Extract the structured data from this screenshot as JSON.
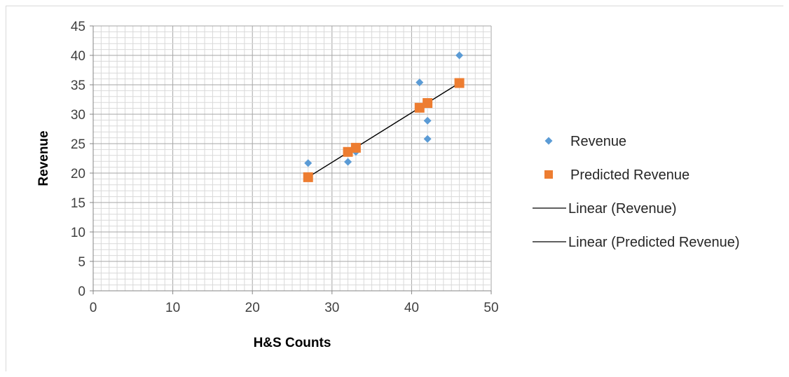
{
  "chart_data": {
    "type": "scatter",
    "xlabel": "H&S Counts",
    "ylabel": "Revenue",
    "xlim": [
      0,
      50
    ],
    "ylim": [
      0,
      45
    ],
    "x_ticks": [
      "0",
      "10",
      "20",
      "30",
      "40",
      "50"
    ],
    "y_ticks": [
      "0",
      "5",
      "10",
      "15",
      "20",
      "25",
      "30",
      "35",
      "40",
      "45"
    ],
    "grid": true,
    "legend_position": "right",
    "series": [
      {
        "name": "Revenue",
        "marker": "diamond",
        "color": "#5B9BD5",
        "points": [
          [
            27,
            21.7
          ],
          [
            32,
            21.9
          ],
          [
            33,
            23.6
          ],
          [
            41,
            35.4
          ],
          [
            42,
            28.9
          ],
          [
            42,
            25.8
          ],
          [
            46,
            40
          ]
        ]
      },
      {
        "name": "Predicted Revenue",
        "marker": "square",
        "color": "#ED7D31",
        "points": [
          [
            27,
            19.3
          ],
          [
            32,
            23.6
          ],
          [
            33,
            24.3
          ],
          [
            41,
            31.1
          ],
          [
            42,
            31.9
          ],
          [
            46,
            35.3
          ]
        ]
      }
    ],
    "trendlines": [
      {
        "name": "Linear (Revenue)",
        "color": "#000000",
        "from": [
          27,
          19.3
        ],
        "to": [
          46,
          35.3
        ]
      },
      {
        "name": "Linear (Predicted Revenue)",
        "color": "#000000",
        "from": [
          27,
          19.3
        ],
        "to": [
          46,
          35.3
        ]
      }
    ],
    "legend": [
      {
        "label": "Revenue",
        "symbol": "diamond",
        "color": "#5B9BD5"
      },
      {
        "label": "Predicted Revenue",
        "symbol": "square",
        "color": "#ED7D31"
      },
      {
        "label": "Linear (Revenue)",
        "symbol": "line",
        "color": "#000000"
      },
      {
        "label": "Linear (Predicted Revenue)",
        "symbol": "line",
        "color": "#000000"
      }
    ]
  }
}
